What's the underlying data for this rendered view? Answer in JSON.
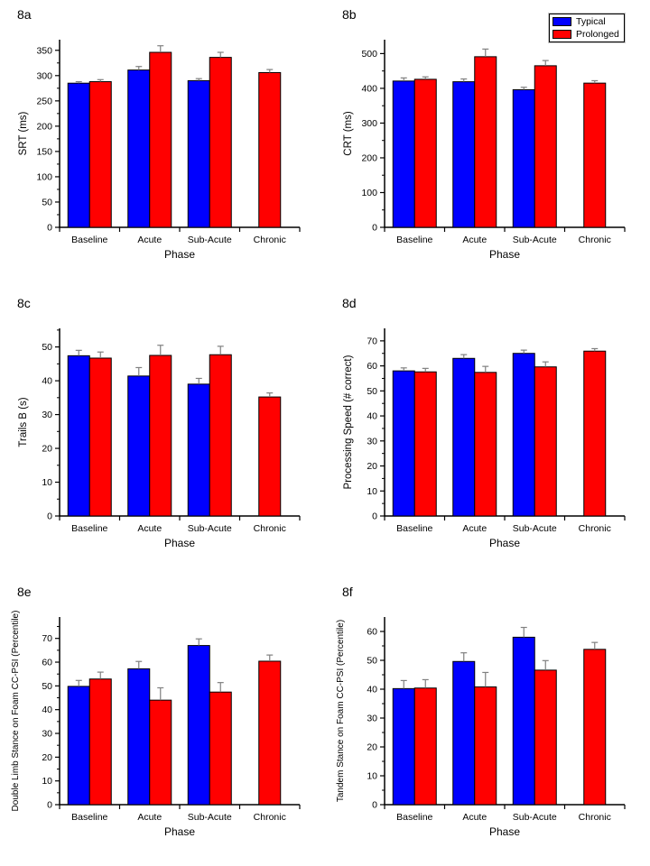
{
  "legend": {
    "items": [
      {
        "label": "Typical",
        "color": "#0000ff"
      },
      {
        "label": "Prolonged",
        "color": "#ff0000"
      }
    ]
  },
  "styles": {
    "axis_color": "#000000",
    "bar_edge_color": "#000000",
    "error_bar_color": "#808080"
  },
  "chart_data": [
    {
      "panel": "8a",
      "type": "bar",
      "categories": [
        "Baseline",
        "Acute",
        "Sub-Acute",
        "Chronic"
      ],
      "xlabel": "Phase",
      "ylabel": "SRT (ms)",
      "ylim": [
        0,
        371
      ],
      "ytick_interval": 50,
      "ytick_max": 350,
      "legend_position": "figure-top-right",
      "grid": false,
      "series": [
        {
          "name": "Typical",
          "color": "#0000ff",
          "values": [
            285,
            311,
            290,
            null
          ],
          "errors": [
            3,
            7,
            4,
            null
          ]
        },
        {
          "name": "Prolonged",
          "color": "#ff0000",
          "values": [
            288,
            346,
            336,
            306
          ],
          "errors": [
            4,
            13,
            10,
            6
          ]
        }
      ]
    },
    {
      "panel": "8b",
      "type": "bar",
      "categories": [
        "Baseline",
        "Acute",
        "Sub-Acute",
        "Chronic"
      ],
      "xlabel": "Phase",
      "ylabel": "CRT (ms)",
      "ylim": [
        0,
        540
      ],
      "ytick_interval": 100,
      "ytick_max": 500,
      "grid": false,
      "series": [
        {
          "name": "Typical",
          "color": "#0000ff",
          "values": [
            421,
            419,
            396,
            null
          ],
          "errors": [
            9,
            8,
            7,
            null
          ]
        },
        {
          "name": "Prolonged",
          "color": "#ff0000",
          "values": [
            426,
            491,
            465,
            415
          ],
          "errors": [
            7,
            22,
            15,
            7
          ]
        }
      ]
    },
    {
      "panel": "8c",
      "type": "bar",
      "categories": [
        "Baseline",
        "Acute",
        "Sub-Acute",
        "Chronic"
      ],
      "xlabel": "Phase",
      "ylabel": "Trails B (s)",
      "ylim": [
        0,
        55.5
      ],
      "ytick_interval": 10,
      "ytick_max": 50,
      "grid": false,
      "series": [
        {
          "name": "Typical",
          "color": "#0000ff",
          "values": [
            47.4,
            41.4,
            39.0,
            null
          ],
          "errors": [
            1.6,
            2.5,
            1.7,
            null
          ]
        },
        {
          "name": "Prolonged",
          "color": "#ff0000",
          "values": [
            46.7,
            47.5,
            47.7,
            35.2
          ],
          "errors": [
            1.8,
            3.0,
            2.5,
            1.2
          ]
        }
      ]
    },
    {
      "panel": "8d",
      "type": "bar",
      "categories": [
        "Baseline",
        "Acute",
        "Sub-Acute",
        "Chronic"
      ],
      "xlabel": "Phase",
      "ylabel": "Processing Speed (# correct)",
      "ylim": [
        0,
        75
      ],
      "ytick_interval": 10,
      "ytick_max": 70,
      "grid": false,
      "series": [
        {
          "name": "Typical",
          "color": "#0000ff",
          "values": [
            58,
            63,
            65,
            null
          ],
          "errors": [
            1.2,
            1.5,
            1.3,
            null
          ]
        },
        {
          "name": "Prolonged",
          "color": "#ff0000",
          "values": [
            57.6,
            57.4,
            59.6,
            65.9
          ],
          "errors": [
            1.4,
            2.4,
            2.0,
            1.0
          ]
        }
      ]
    },
    {
      "panel": "8e",
      "type": "bar",
      "categories": [
        "Baseline",
        "Acute",
        "Sub-Acute",
        "Chronic"
      ],
      "xlabel": "Phase",
      "ylabel": "Double Limb Stance on Foam CC-PSI (Percentile)",
      "ylim": [
        0,
        79
      ],
      "ytick_interval": 10,
      "ytick_max": 70,
      "grid": false,
      "series": [
        {
          "name": "Typical",
          "color": "#0000ff",
          "values": [
            49.8,
            57.2,
            67.0,
            null
          ],
          "errors": [
            2.5,
            3.1,
            2.8,
            null
          ]
        },
        {
          "name": "Prolonged",
          "color": "#ff0000",
          "values": [
            52.9,
            44.0,
            47.4,
            60.4
          ],
          "errors": [
            2.9,
            5.2,
            4.0,
            2.6
          ]
        }
      ]
    },
    {
      "panel": "8f",
      "type": "bar",
      "categories": [
        "Baseline",
        "Acute",
        "Sub-Acute",
        "Chronic"
      ],
      "xlabel": "Phase",
      "ylabel": "Tandem Stance on Foam CC-PSI (Percentile)",
      "ylim": [
        0,
        65
      ],
      "ytick_interval": 10,
      "ytick_max": 60,
      "grid": false,
      "series": [
        {
          "name": "Typical",
          "color": "#0000ff",
          "values": [
            40.2,
            49.6,
            58.0,
            null
          ],
          "errors": [
            2.8,
            3.0,
            3.4,
            null
          ]
        },
        {
          "name": "Prolonged",
          "color": "#ff0000",
          "values": [
            40.4,
            40.8,
            46.6,
            53.8
          ],
          "errors": [
            2.9,
            5.0,
            3.3,
            2.4
          ]
        }
      ]
    }
  ]
}
